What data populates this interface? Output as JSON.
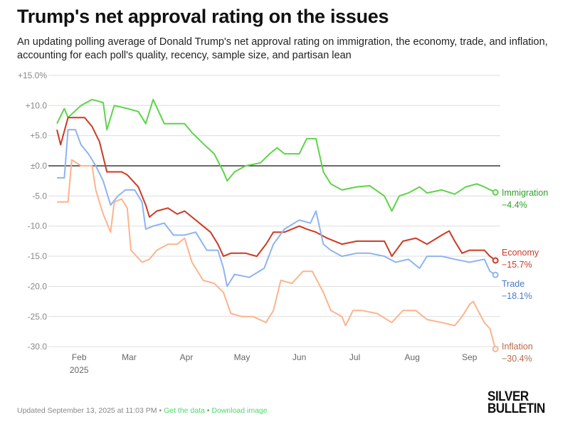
{
  "title": "Trump's net approval rating on the issues",
  "subtitle": "An updating polling average of Donald Trump's net approval rating on immigration, the economy, trade, and inflation, accounting for each poll's quality, recency, sample size, and partisan lean",
  "footer": {
    "updated": "Updated September 13, 2025 at 11:03 PM",
    "sep": "•",
    "get_data": "Get the data",
    "download": "Download image"
  },
  "logo": {
    "line1": "SILVER",
    "line2": "BULLETIN"
  },
  "chart_data": {
    "type": "line",
    "x_unit": "days since start (Jan 20, 2025 approx.)",
    "ylim": [
      -30,
      15
    ],
    "yticks": [
      {
        "v": 15,
        "label": "+15.0%"
      },
      {
        "v": 10,
        "label": "+10.0"
      },
      {
        "v": 5,
        "label": "+5.0"
      },
      {
        "v": 0,
        "label": "±0.0"
      },
      {
        "v": -5,
        "label": "-5.0"
      },
      {
        "v": -10,
        "label": "-10.0"
      },
      {
        "v": -15,
        "label": "-15.0"
      },
      {
        "v": -20,
        "label": "-20.0"
      },
      {
        "v": -25,
        "label": "-25.0"
      },
      {
        "v": -30,
        "label": "-30.0"
      }
    ],
    "xticks": [
      {
        "d": 12,
        "label": "Feb",
        "sub": "2025"
      },
      {
        "d": 39,
        "label": "Mar"
      },
      {
        "d": 70,
        "label": "Apr"
      },
      {
        "d": 100,
        "label": "May"
      },
      {
        "d": 131,
        "label": "Jun"
      },
      {
        "d": 161,
        "label": "Jul"
      },
      {
        "d": 192,
        "label": "Aug"
      },
      {
        "d": 223,
        "label": "Sep"
      }
    ],
    "series": [
      {
        "name": "Immigration",
        "final": "−4.4%",
        "color": "#5fd34a",
        "label_color": "#2e9e2a",
        "points": [
          [
            0,
            7
          ],
          [
            4,
            9.5
          ],
          [
            6,
            8
          ],
          [
            13,
            10
          ],
          [
            19,
            11
          ],
          [
            25,
            10.5
          ],
          [
            27,
            6
          ],
          [
            31,
            10
          ],
          [
            38,
            9.5
          ],
          [
            44,
            9
          ],
          [
            48,
            7
          ],
          [
            52,
            11
          ],
          [
            58,
            7
          ],
          [
            69,
            7
          ],
          [
            73,
            5.5
          ],
          [
            79,
            3.7
          ],
          [
            85,
            2
          ],
          [
            90,
            -1
          ],
          [
            92,
            -2.5
          ],
          [
            96,
            -1
          ],
          [
            102,
            0
          ],
          [
            110,
            0.5
          ],
          [
            115,
            2
          ],
          [
            119,
            3
          ],
          [
            123,
            2
          ],
          [
            131,
            2
          ],
          [
            135,
            4.5
          ],
          [
            140,
            4.5
          ],
          [
            144,
            -1
          ],
          [
            148,
            -3
          ],
          [
            154,
            -4
          ],
          [
            162,
            -3.5
          ],
          [
            169,
            -3.3
          ],
          [
            177,
            -5
          ],
          [
            181,
            -7.5
          ],
          [
            185,
            -5
          ],
          [
            190,
            -4.5
          ],
          [
            196,
            -3.5
          ],
          [
            200,
            -4.5
          ],
          [
            208,
            -4
          ],
          [
            215,
            -4.7
          ],
          [
            221,
            -3.5
          ],
          [
            227,
            -3
          ],
          [
            231,
            -3.5
          ],
          [
            237,
            -4.4
          ]
        ]
      },
      {
        "name": "Economy",
        "final": "−15.7%",
        "color": "#cc3a24",
        "label_color": "#cc3a24",
        "points": [
          [
            0,
            6
          ],
          [
            2,
            3.5
          ],
          [
            6,
            8
          ],
          [
            15,
            8
          ],
          [
            19,
            6.5
          ],
          [
            23,
            4
          ],
          [
            27,
            -1
          ],
          [
            35,
            -1
          ],
          [
            38,
            -1.5
          ],
          [
            44,
            -3.5
          ],
          [
            48,
            -6.5
          ],
          [
            50,
            -8.5
          ],
          [
            54,
            -7.5
          ],
          [
            60,
            -7
          ],
          [
            65,
            -8
          ],
          [
            69,
            -7.5
          ],
          [
            75,
            -9
          ],
          [
            79,
            -10
          ],
          [
            83,
            -11
          ],
          [
            87,
            -13
          ],
          [
            90,
            -15
          ],
          [
            94,
            -14.5
          ],
          [
            102,
            -14.5
          ],
          [
            108,
            -15
          ],
          [
            113,
            -13
          ],
          [
            117,
            -11
          ],
          [
            123,
            -11
          ],
          [
            131,
            -10
          ],
          [
            135,
            -10.5
          ],
          [
            140,
            -11
          ],
          [
            146,
            -12
          ],
          [
            154,
            -13
          ],
          [
            162,
            -12.5
          ],
          [
            169,
            -12.5
          ],
          [
            177,
            -12.5
          ],
          [
            181,
            -15
          ],
          [
            187,
            -12.5
          ],
          [
            194,
            -12
          ],
          [
            200,
            -13
          ],
          [
            208,
            -11.5
          ],
          [
            212,
            -10.8
          ],
          [
            215,
            -12.5
          ],
          [
            219,
            -14.5
          ],
          [
            223,
            -14
          ],
          [
            231,
            -14
          ],
          [
            234,
            -15
          ],
          [
            237,
            -15.7
          ]
        ]
      },
      {
        "name": "Trade",
        "final": "−18.1%",
        "color": "#8fb3f0",
        "label_color": "#4a78c8",
        "points": [
          [
            0,
            -2
          ],
          [
            4,
            -2
          ],
          [
            6,
            6
          ],
          [
            10,
            6
          ],
          [
            13,
            3.5
          ],
          [
            17,
            2
          ],
          [
            21,
            0
          ],
          [
            25,
            -2.5
          ],
          [
            29,
            -6.5
          ],
          [
            33,
            -5
          ],
          [
            37,
            -4
          ],
          [
            42,
            -4
          ],
          [
            46,
            -6
          ],
          [
            48,
            -10.5
          ],
          [
            52,
            -10
          ],
          [
            58,
            -9.5
          ],
          [
            63,
            -11.5
          ],
          [
            69,
            -11.5
          ],
          [
            75,
            -11
          ],
          [
            81,
            -14
          ],
          [
            87,
            -14
          ],
          [
            90,
            -17
          ],
          [
            92,
            -20
          ],
          [
            96,
            -18
          ],
          [
            104,
            -18.5
          ],
          [
            112,
            -17
          ],
          [
            117,
            -13
          ],
          [
            123,
            -10.5
          ],
          [
            131,
            -9
          ],
          [
            137,
            -9.5
          ],
          [
            140,
            -7.5
          ],
          [
            144,
            -13
          ],
          [
            148,
            -14
          ],
          [
            154,
            -15
          ],
          [
            162,
            -14.5
          ],
          [
            169,
            -14.5
          ],
          [
            177,
            -15
          ],
          [
            183,
            -16
          ],
          [
            190,
            -15.5
          ],
          [
            196,
            -17
          ],
          [
            200,
            -15
          ],
          [
            208,
            -15
          ],
          [
            215,
            -15.5
          ],
          [
            223,
            -16
          ],
          [
            231,
            -15.5
          ],
          [
            234,
            -17.5
          ],
          [
            237,
            -18.1
          ]
        ]
      },
      {
        "name": "Inflation",
        "final": "−30.4%",
        "color": "#fbb48e",
        "label_color": "#b86a48",
        "points": [
          [
            0,
            -6
          ],
          [
            6,
            -6
          ],
          [
            8,
            1
          ],
          [
            13,
            0
          ],
          [
            19,
            0
          ],
          [
            21,
            -4
          ],
          [
            25,
            -8
          ],
          [
            29,
            -11
          ],
          [
            31,
            -6
          ],
          [
            35,
            -5.5
          ],
          [
            38,
            -7
          ],
          [
            40,
            -14
          ],
          [
            46,
            -16
          ],
          [
            50,
            -15.5
          ],
          [
            54,
            -14
          ],
          [
            60,
            -13
          ],
          [
            65,
            -13
          ],
          [
            69,
            -12
          ],
          [
            73,
            -16
          ],
          [
            79,
            -19
          ],
          [
            85,
            -19.5
          ],
          [
            90,
            -21
          ],
          [
            94,
            -24.5
          ],
          [
            100,
            -25
          ],
          [
            106,
            -25
          ],
          [
            113,
            -26
          ],
          [
            117,
            -24
          ],
          [
            121,
            -19
          ],
          [
            127,
            -19.5
          ],
          [
            133,
            -17.5
          ],
          [
            138,
            -17.5
          ],
          [
            144,
            -21
          ],
          [
            148,
            -24
          ],
          [
            154,
            -25
          ],
          [
            156,
            -26.5
          ],
          [
            160,
            -24
          ],
          [
            165,
            -24
          ],
          [
            173,
            -24.5
          ],
          [
            181,
            -26
          ],
          [
            187,
            -24
          ],
          [
            194,
            -24
          ],
          [
            200,
            -25.5
          ],
          [
            208,
            -26
          ],
          [
            215,
            -26.5
          ],
          [
            219,
            -25
          ],
          [
            223,
            -23
          ],
          [
            225,
            -22.5
          ],
          [
            231,
            -26
          ],
          [
            234,
            -27
          ],
          [
            237,
            -30.4
          ]
        ]
      }
    ]
  }
}
